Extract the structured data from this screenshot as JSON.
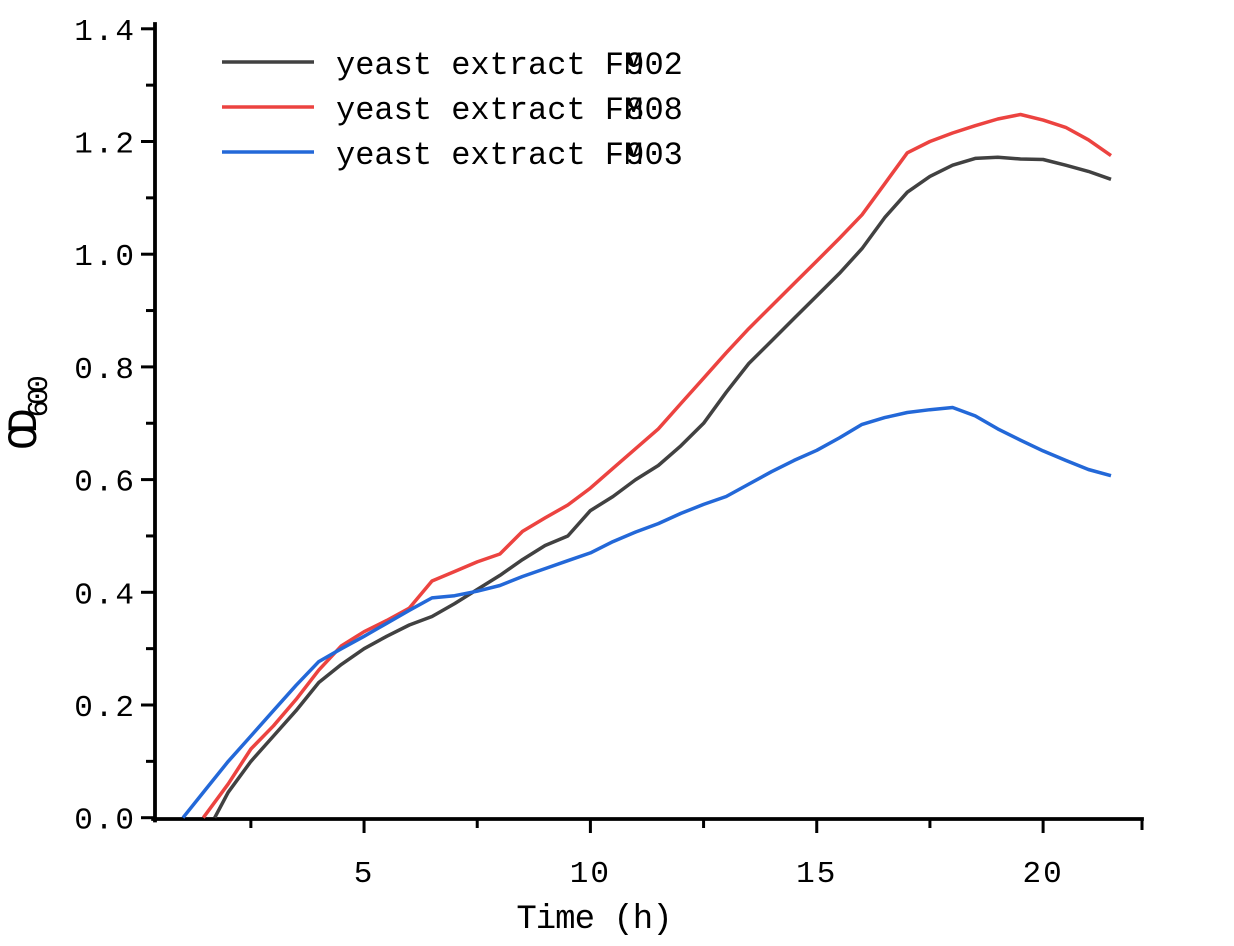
{
  "figure": {
    "background": "#ffffff",
    "axis_color": "#000000"
  },
  "chart_data": {
    "type": "line",
    "title": "",
    "xlabel": "Time (h)",
    "ylabel_base": "OD",
    "ylabel_subscript": "600",
    "xlim": [
      0.35,
      22.2
    ],
    "ylim": [
      0.0,
      1.4
    ],
    "grid": false,
    "legend_position": "top-left-inside",
    "x_major_ticks": [
      5,
      10,
      15,
      20
    ],
    "x_major_tick_labels": [
      "5",
      "10",
      "15",
      "20"
    ],
    "x_minor_ticks": [
      2.5,
      7.5,
      12.5,
      17.5
    ],
    "y_major_ticks": [
      0.0,
      0.2,
      0.4,
      0.6,
      0.8,
      1.0,
      1.2,
      1.4
    ],
    "y_major_tick_labels": [
      "0.0",
      "0.2",
      "0.4",
      "0.6",
      "0.8",
      "1.0",
      "1.2",
      "1.4"
    ],
    "y_minor_ticks": [
      0.1,
      0.3,
      0.5,
      0.7,
      0.9,
      1.1,
      1.3
    ],
    "series": [
      {
        "id": "FM902",
        "name": "yeast extract FM902",
        "legend_prefix": "yeast extract FM",
        "legend_digits": "902",
        "color": "#414141",
        "x": [
          1.7,
          2,
          2.5,
          3,
          3.5,
          4,
          4.5,
          5,
          5.5,
          6,
          6.5,
          7,
          7.5,
          8,
          8.5,
          9,
          9.5,
          10,
          10.5,
          11,
          11.5,
          12,
          12.5,
          13,
          13.5,
          14,
          14.5,
          15,
          15.5,
          16,
          16.5,
          17,
          17.5,
          18,
          18.5,
          19,
          19.5,
          20,
          20.5,
          21,
          21.5
        ],
        "y": [
          0,
          0.045,
          0.1,
          0.145,
          0.19,
          0.24,
          0.272,
          0.3,
          0.322,
          0.342,
          0.357,
          0.38,
          0.405,
          0.43,
          0.458,
          0.483,
          0.5,
          0.545,
          0.57,
          0.6,
          0.625,
          0.66,
          0.7,
          0.755,
          0.806,
          0.846,
          0.886,
          0.926,
          0.966,
          1.01,
          1.065,
          1.11,
          1.138,
          1.158,
          1.17,
          1.172,
          1.169,
          1.168,
          1.158,
          1.147,
          1.133
        ]
      },
      {
        "id": "FM808",
        "name": "yeast extract FM808",
        "legend_prefix": "yeast extract FM",
        "legend_digits": "808",
        "color": "#EC4340",
        "x": [
          1.45,
          2,
          2.5,
          3,
          3.5,
          4,
          4.5,
          5,
          5.5,
          6,
          6.5,
          7,
          7.5,
          8,
          8.5,
          9,
          9.5,
          10,
          10.5,
          11,
          11.5,
          12,
          12.5,
          13,
          13.5,
          14,
          14.5,
          15,
          15.5,
          16,
          16.5,
          17,
          17.5,
          18,
          18.5,
          19,
          19.5,
          20,
          20.5,
          21,
          21.5
        ],
        "y": [
          0,
          0.06,
          0.122,
          0.163,
          0.21,
          0.262,
          0.305,
          0.33,
          0.35,
          0.372,
          0.42,
          0.437,
          0.454,
          0.468,
          0.508,
          0.532,
          0.555,
          0.585,
          0.62,
          0.655,
          0.69,
          0.735,
          0.78,
          0.825,
          0.868,
          0.908,
          0.948,
          0.988,
          1.028,
          1.07,
          1.125,
          1.18,
          1.2,
          1.215,
          1.228,
          1.24,
          1.248,
          1.238,
          1.225,
          1.203,
          1.175
        ]
      },
      {
        "id": "FM903",
        "name": "yeast extract FM903",
        "legend_prefix": "yeast extract FM",
        "legend_digits": "903",
        "color": "#2368D8",
        "x": [
          1,
          1.5,
          2,
          2.5,
          3,
          3.5,
          4,
          4.5,
          5,
          5.5,
          6,
          6.5,
          7,
          7.5,
          8,
          8.5,
          9,
          9.5,
          10,
          10.5,
          11,
          11.5,
          12,
          12.5,
          13,
          13.5,
          14,
          14.5,
          15,
          15.5,
          16,
          16.5,
          17,
          17.5,
          18,
          18.5,
          19,
          19.5,
          20,
          20.5,
          21,
          21.5
        ],
        "y": [
          0,
          0.05,
          0.1,
          0.145,
          0.19,
          0.235,
          0.277,
          0.3,
          0.322,
          0.345,
          0.368,
          0.39,
          0.394,
          0.402,
          0.412,
          0.428,
          0.442,
          0.456,
          0.47,
          0.49,
          0.507,
          0.522,
          0.54,
          0.556,
          0.57,
          0.592,
          0.614,
          0.634,
          0.652,
          0.674,
          0.698,
          0.71,
          0.719,
          0.724,
          0.728,
          0.713,
          0.69,
          0.67,
          0.651,
          0.634,
          0.618,
          0.607
        ]
      }
    ]
  }
}
